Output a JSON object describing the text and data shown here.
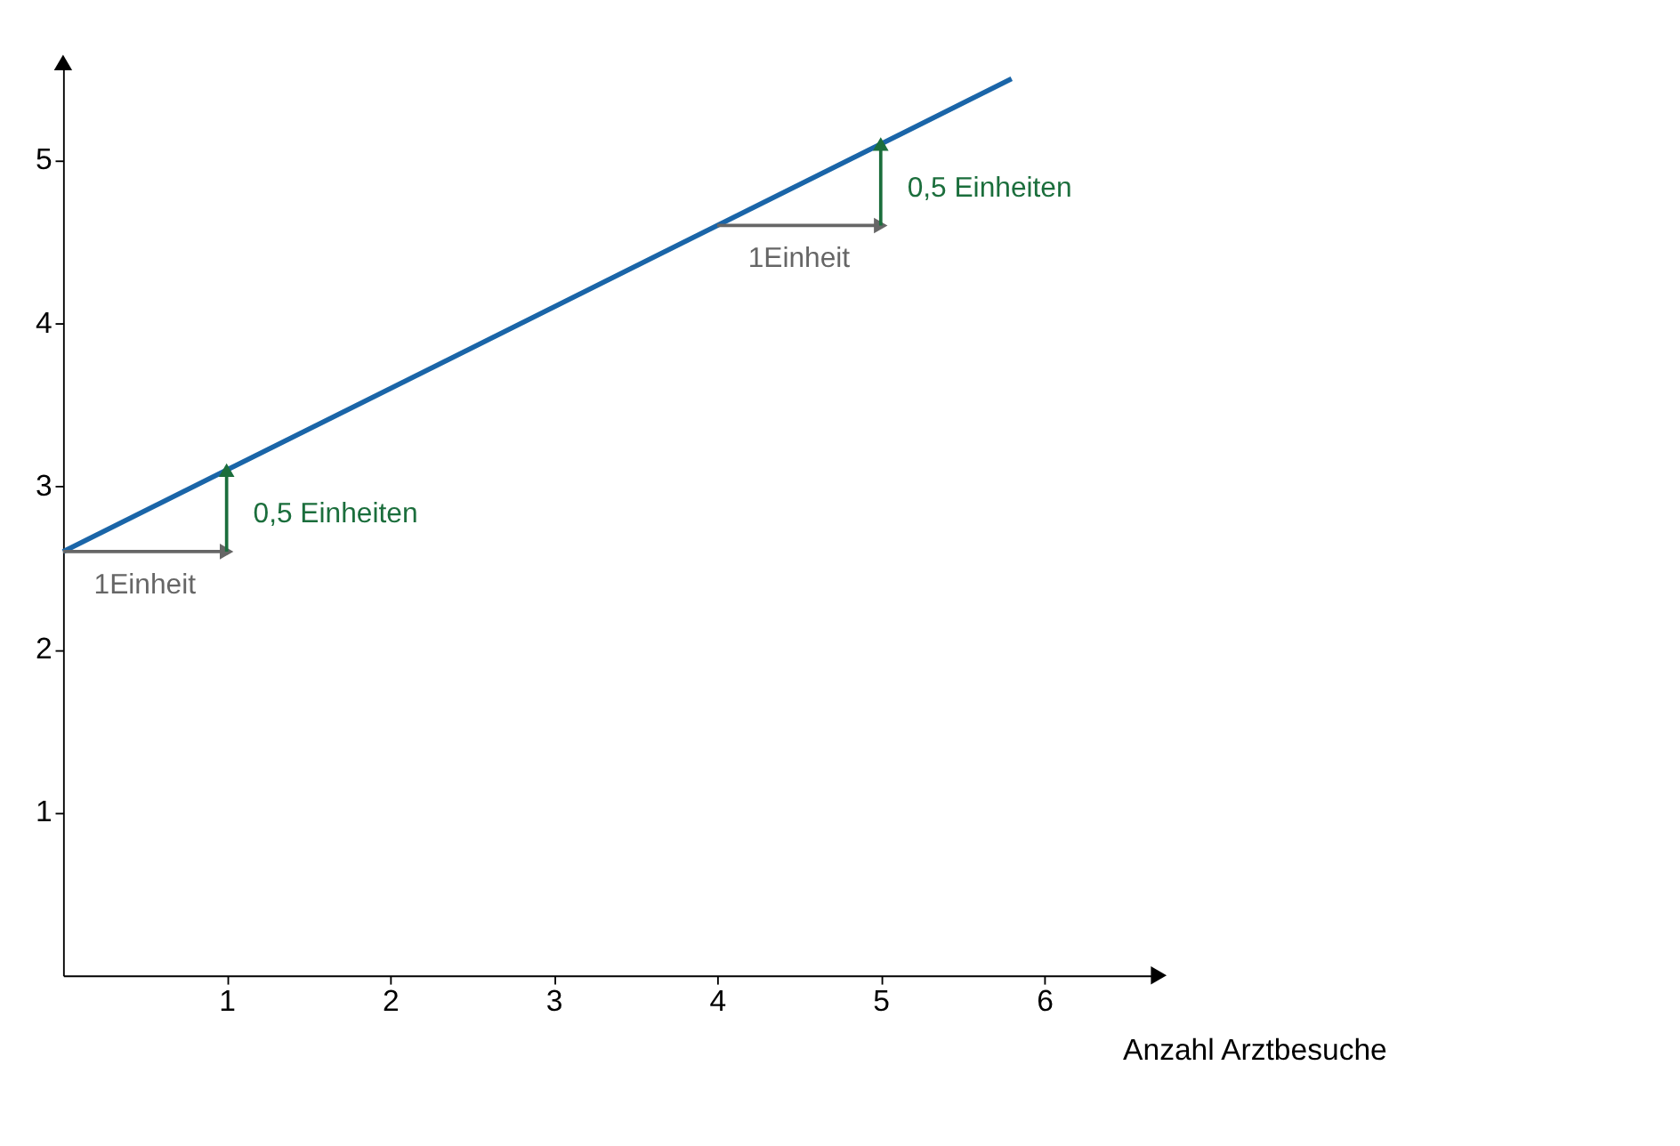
{
  "chart_data": {
    "type": "line",
    "xlabel": "Anzahl Arztbesuche",
    "xlim": [
      0,
      6.7
    ],
    "ylim": [
      0,
      5.6
    ],
    "xticks": [
      1,
      2,
      3,
      4,
      5,
      6
    ],
    "yticks": [
      1,
      2,
      3,
      4,
      5
    ],
    "grid": false,
    "series": [
      {
        "color": "#1a65a8",
        "x": [
          0,
          5.8
        ],
        "values": [
          2.6,
          5.5
        ]
      },
      {
        "color": "#666666",
        "x": [
          0,
          1
        ],
        "values": [
          2.6,
          2.6
        ],
        "marker": "triangle"
      },
      {
        "color": "#1b6e3c",
        "x": [
          1,
          1
        ],
        "values": [
          2.6,
          3.1
        ],
        "marker": "triangle"
      },
      {
        "color": "#666666",
        "x": [
          4,
          5
        ],
        "values": [
          4.6,
          4.6
        ],
        "marker": "triangle"
      },
      {
        "color": "#1b6e3c",
        "x": [
          5,
          5
        ],
        "values": [
          4.6,
          5.1
        ],
        "marker": "triangle"
      }
    ],
    "annotations": [
      "1Einheit",
      "0,5 Einheiten",
      "1Einheit",
      "0,5 Einheiten"
    ]
  }
}
